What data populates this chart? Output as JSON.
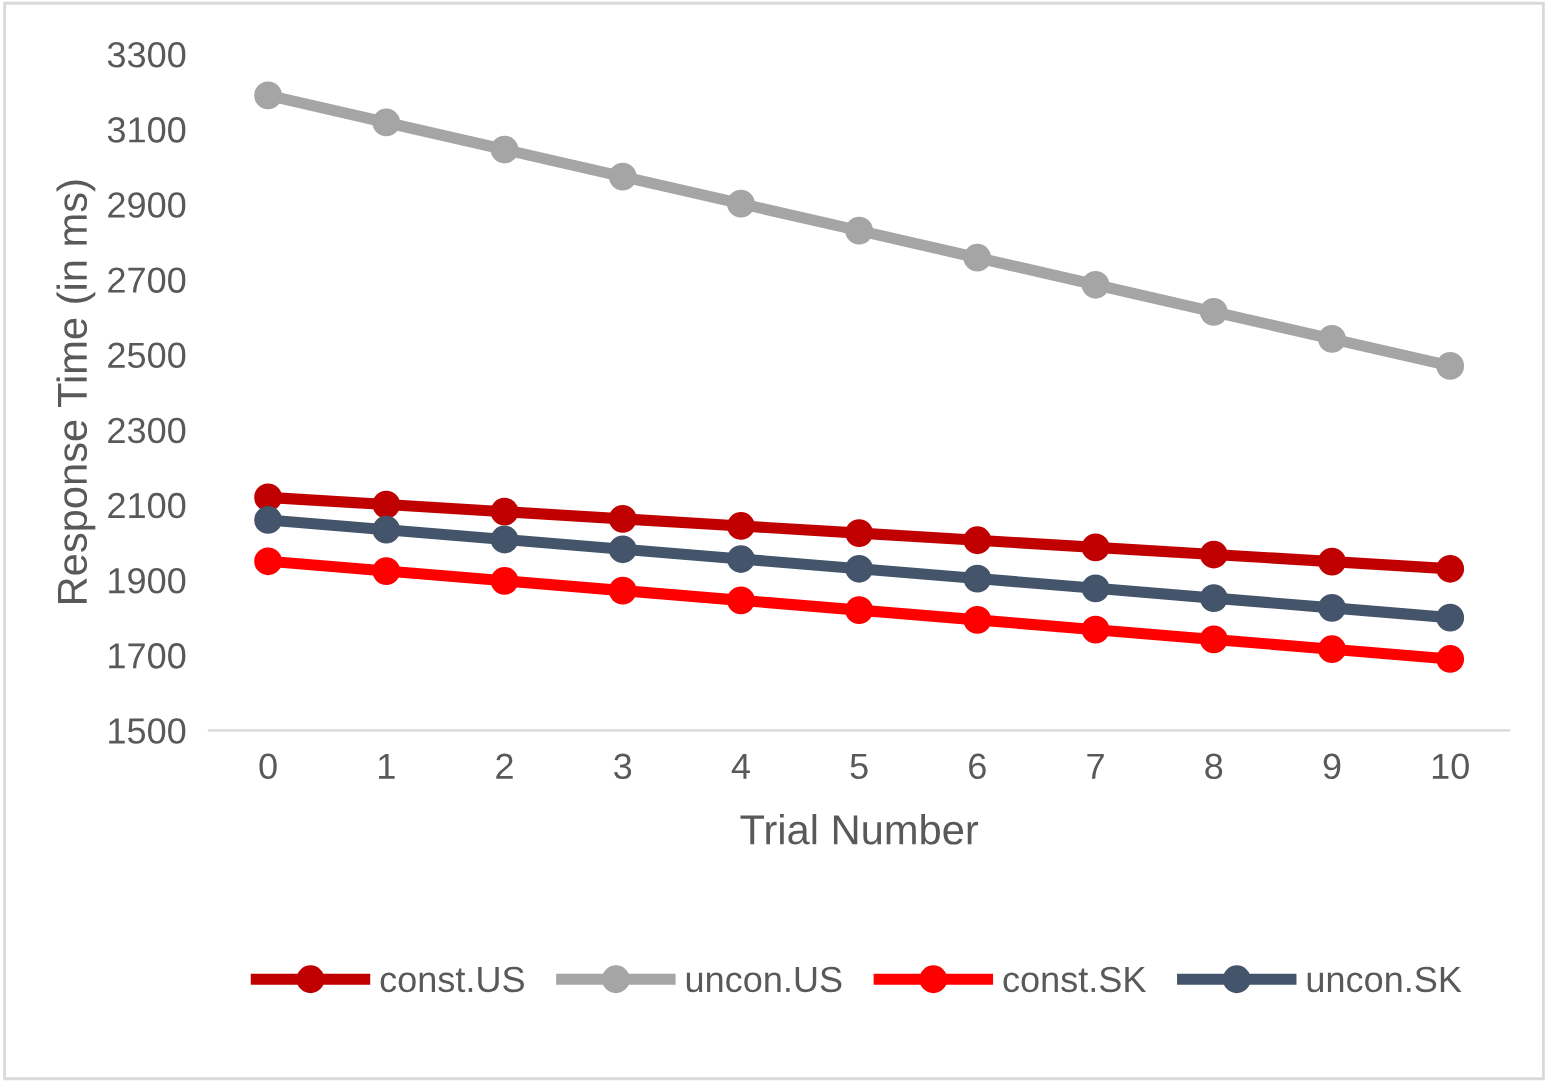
{
  "chart_data": {
    "type": "line",
    "xlabel": "Trial Number",
    "ylabel": "Response Time (in ms)",
    "categories": [
      "0",
      "1",
      "2",
      "3",
      "4",
      "5",
      "6",
      "7",
      "8",
      "9",
      "10"
    ],
    "series": [
      {
        "name": "const.US",
        "color": "#c00000",
        "values": [
          2120,
          2101,
          2082,
          2063,
          2044,
          2025,
          2006,
          1987,
          1968,
          1949,
          1930
        ]
      },
      {
        "name": "uncon.US",
        "color": "#a5a5a5",
        "values": [
          3190,
          3118,
          3046,
          2974,
          2902,
          2830,
          2758,
          2686,
          2614,
          2542,
          2470
        ]
      },
      {
        "name": "const.SK",
        "color": "#ff0000",
        "values": [
          1950,
          1924,
          1898,
          1872,
          1846,
          1820,
          1794,
          1768,
          1742,
          1716,
          1690
        ]
      },
      {
        "name": "uncon.SK",
        "color": "#44546a",
        "values": [
          2060,
          2034,
          2008,
          1982,
          1956,
          1930,
          1904,
          1878,
          1852,
          1826,
          1800
        ]
      }
    ],
    "ylim": [
      1500,
      3300
    ],
    "yticks": [
      1500,
      1700,
      1900,
      2100,
      2300,
      2500,
      2700,
      2900,
      3100,
      3300
    ],
    "marker": "circle",
    "legend": "bottom"
  }
}
